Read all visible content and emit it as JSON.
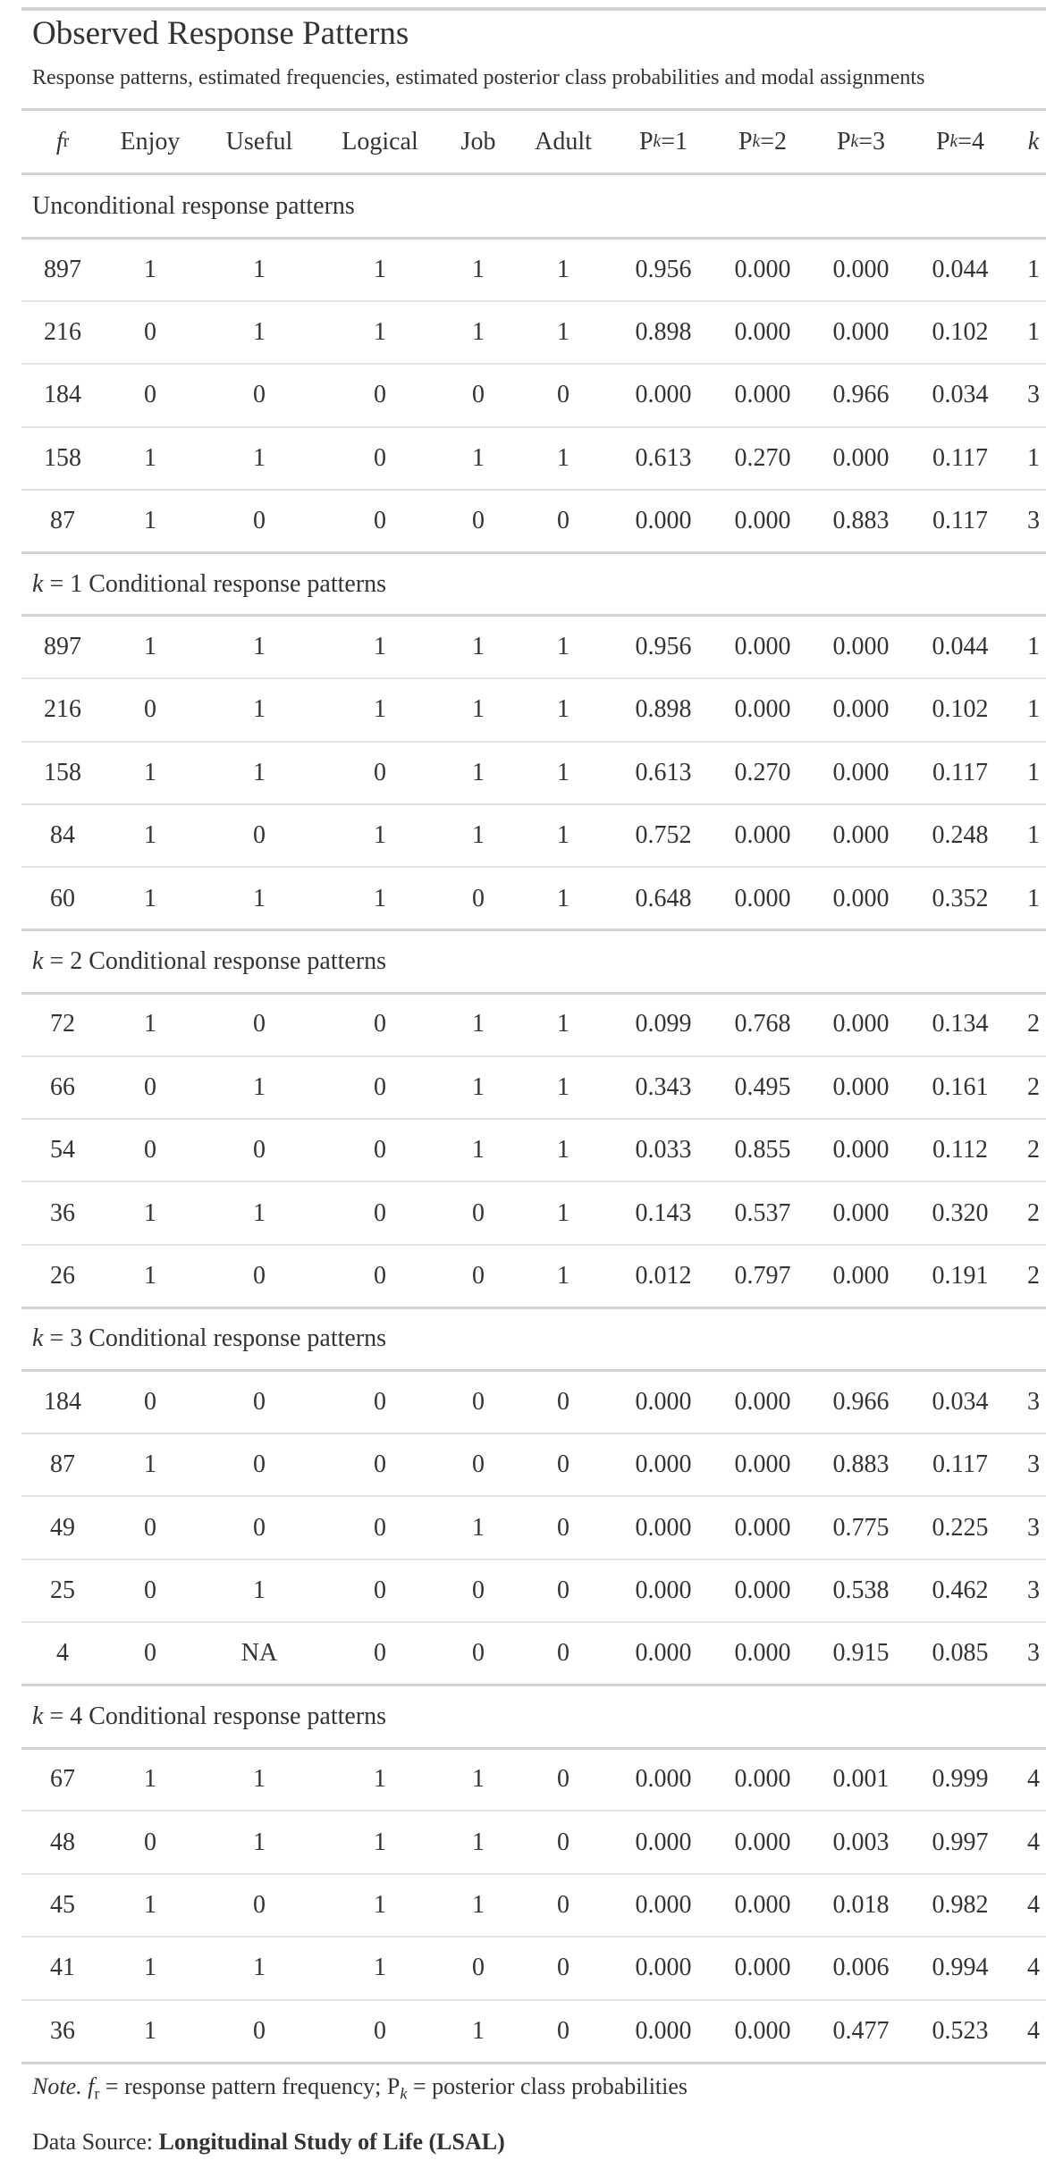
{
  "title": "Observed Response Patterns",
  "subtitle": "Response patterns, estimated frequencies, estimated posterior class probabilities and modal assignments",
  "columns": [
    "fr",
    "Enjoy",
    "Useful",
    "Logical",
    "Job",
    "Adult",
    "Pk=1",
    "Pk=2",
    "Pk=3",
    "Pk=4",
    "k"
  ],
  "header": {
    "fr_sym": "f",
    "fr_sub": "r",
    "enjoy": "Enjoy",
    "useful": "Useful",
    "logical": "Logical",
    "job": "Job",
    "adult": "Adult",
    "p_sym": "P",
    "p_sub": "k",
    "p1_suffix": "=1",
    "p2_suffix": "=2",
    "p3_suffix": "=3",
    "p4_suffix": "=4",
    "k": "k"
  },
  "groups": [
    {
      "label_k": "",
      "label_text": "Unconditional response patterns",
      "rows": [
        [
          "897",
          "1",
          "1",
          "1",
          "1",
          "1",
          "0.956",
          "0.000",
          "0.000",
          "0.044",
          "1"
        ],
        [
          "216",
          "0",
          "1",
          "1",
          "1",
          "1",
          "0.898",
          "0.000",
          "0.000",
          "0.102",
          "1"
        ],
        [
          "184",
          "0",
          "0",
          "0",
          "0",
          "0",
          "0.000",
          "0.000",
          "0.966",
          "0.034",
          "3"
        ],
        [
          "158",
          "1",
          "1",
          "0",
          "1",
          "1",
          "0.613",
          "0.270",
          "0.000",
          "0.117",
          "1"
        ],
        [
          "87",
          "1",
          "0",
          "0",
          "0",
          "0",
          "0.000",
          "0.000",
          "0.883",
          "0.117",
          "3"
        ]
      ]
    },
    {
      "label_k": "k",
      "label_text": " = 1 Conditional response patterns",
      "rows": [
        [
          "897",
          "1",
          "1",
          "1",
          "1",
          "1",
          "0.956",
          "0.000",
          "0.000",
          "0.044",
          "1"
        ],
        [
          "216",
          "0",
          "1",
          "1",
          "1",
          "1",
          "0.898",
          "0.000",
          "0.000",
          "0.102",
          "1"
        ],
        [
          "158",
          "1",
          "1",
          "0",
          "1",
          "1",
          "0.613",
          "0.270",
          "0.000",
          "0.117",
          "1"
        ],
        [
          "84",
          "1",
          "0",
          "1",
          "1",
          "1",
          "0.752",
          "0.000",
          "0.000",
          "0.248",
          "1"
        ],
        [
          "60",
          "1",
          "1",
          "1",
          "0",
          "1",
          "0.648",
          "0.000",
          "0.000",
          "0.352",
          "1"
        ]
      ]
    },
    {
      "label_k": "k",
      "label_text": " = 2 Conditional response patterns",
      "rows": [
        [
          "72",
          "1",
          "0",
          "0",
          "1",
          "1",
          "0.099",
          "0.768",
          "0.000",
          "0.134",
          "2"
        ],
        [
          "66",
          "0",
          "1",
          "0",
          "1",
          "1",
          "0.343",
          "0.495",
          "0.000",
          "0.161",
          "2"
        ],
        [
          "54",
          "0",
          "0",
          "0",
          "1",
          "1",
          "0.033",
          "0.855",
          "0.000",
          "0.112",
          "2"
        ],
        [
          "36",
          "1",
          "1",
          "0",
          "0",
          "1",
          "0.143",
          "0.537",
          "0.000",
          "0.320",
          "2"
        ],
        [
          "26",
          "1",
          "0",
          "0",
          "0",
          "1",
          "0.012",
          "0.797",
          "0.000",
          "0.191",
          "2"
        ]
      ]
    },
    {
      "label_k": "k",
      "label_text": " = 3 Conditional response patterns",
      "rows": [
        [
          "184",
          "0",
          "0",
          "0",
          "0",
          "0",
          "0.000",
          "0.000",
          "0.966",
          "0.034",
          "3"
        ],
        [
          "87",
          "1",
          "0",
          "0",
          "0",
          "0",
          "0.000",
          "0.000",
          "0.883",
          "0.117",
          "3"
        ],
        [
          "49",
          "0",
          "0",
          "0",
          "1",
          "0",
          "0.000",
          "0.000",
          "0.775",
          "0.225",
          "3"
        ],
        [
          "25",
          "0",
          "1",
          "0",
          "0",
          "0",
          "0.000",
          "0.000",
          "0.538",
          "0.462",
          "3"
        ],
        [
          "4",
          "0",
          "NA",
          "0",
          "0",
          "0",
          "0.000",
          "0.000",
          "0.915",
          "0.085",
          "3"
        ]
      ]
    },
    {
      "label_k": "k",
      "label_text": " = 4 Conditional response patterns",
      "rows": [
        [
          "67",
          "1",
          "1",
          "1",
          "1",
          "0",
          "0.000",
          "0.000",
          "0.001",
          "0.999",
          "4"
        ],
        [
          "48",
          "0",
          "1",
          "1",
          "1",
          "0",
          "0.000",
          "0.000",
          "0.003",
          "0.997",
          "4"
        ],
        [
          "45",
          "1",
          "0",
          "1",
          "1",
          "0",
          "0.000",
          "0.000",
          "0.018",
          "0.982",
          "4"
        ],
        [
          "41",
          "1",
          "1",
          "1",
          "0",
          "0",
          "0.000",
          "0.000",
          "0.006",
          "0.994",
          "4"
        ],
        [
          "36",
          "1",
          "0",
          "0",
          "1",
          "0",
          "0.000",
          "0.000",
          "0.477",
          "0.523",
          "4"
        ]
      ]
    }
  ],
  "note": {
    "label": "Note.",
    "fr_sym": "f",
    "fr_sub": "r",
    "text1": " = response pattern frequency; ",
    "p_sym": "P",
    "p_sub": "k",
    "text2": " = posterior class probabilities"
  },
  "source": {
    "label": "Data Source: ",
    "name": "Longitudinal Study of Life (LSAL)"
  }
}
